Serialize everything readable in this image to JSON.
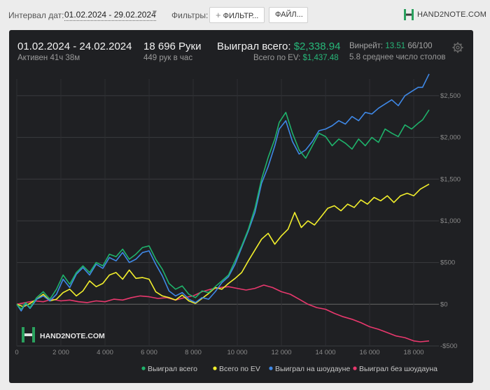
{
  "toolbar": {
    "interval_label": "Интервал дат:",
    "date_range": "01.02.2024 - 29.02.2024",
    "filters_label": "Фильтры:",
    "filter_button": "ФИЛЬТР...",
    "file_button": "ФАЙЛ...",
    "logo_text": "HAND2NOTE.COM"
  },
  "summary": {
    "period": "01.02.2024 - 24.02.2024",
    "active": "Активен 41ч 38м",
    "hands": "18 696 Руки",
    "hands_per_hour": "449 рук в час",
    "won_label": "Выиграл всего:",
    "won_value": "$2,338.94",
    "ev_label": "Всего по EV:",
    "ev_value": "$1,437.48",
    "winrate_label": "Винрейт:",
    "winrate_value": "13.51",
    "winrate_unit": "66/100",
    "avg_tables": "5.8 среднее число столов"
  },
  "watermark": "HAND2NOTE.COM",
  "colors": {
    "won_total": "#1fb26b",
    "ev": "#f2ef2c",
    "showdown": "#3f88e6",
    "non_showdown": "#e8386d",
    "panel_bg": "#1f2023"
  },
  "chart_data": {
    "type": "line",
    "xlabel": "",
    "ylabel": "",
    "xlim": [
      0,
      18696
    ],
    "ylim": [
      -500,
      2700
    ],
    "x_ticks": [
      0,
      2000,
      4000,
      6000,
      8000,
      10000,
      12000,
      14000,
      16000,
      18000
    ],
    "x_tick_labels": [
      "0",
      "2 000",
      "4 000",
      "6 000",
      "8 000",
      "10 000",
      "12 000",
      "14 000",
      "16 000",
      "18 000"
    ],
    "y_ticks": [
      -500,
      0,
      500,
      1000,
      1500,
      2000,
      2500
    ],
    "y_tick_labels": [
      "-$500",
      "$0",
      "$500",
      "$1,000",
      "$1,500",
      "$2,000",
      "$2,500"
    ],
    "grid": true,
    "legend_position": "bottom-right",
    "series": [
      {
        "name": "Выиграл всего",
        "color": "#1fb26b",
        "x": [
          0,
          200,
          400,
          600,
          900,
          1200,
          1500,
          1800,
          2100,
          2400,
          2700,
          3000,
          3300,
          3600,
          3900,
          4200,
          4500,
          4800,
          5100,
          5400,
          5700,
          6000,
          6300,
          6600,
          6900,
          7200,
          7500,
          7800,
          8100,
          8400,
          8700,
          9000,
          9300,
          9600,
          9900,
          10200,
          10500,
          10800,
          11100,
          11400,
          11700,
          11900,
          12200,
          12500,
          12800,
          13100,
          13400,
          13700,
          14000,
          14300,
          14600,
          14900,
          15200,
          15500,
          15800,
          16100,
          16400,
          16700,
          17000,
          17300,
          17600,
          17900,
          18200,
          18400,
          18696
        ],
        "values": [
          0,
          -60,
          20,
          -40,
          80,
          150,
          60,
          180,
          350,
          240,
          380,
          460,
          380,
          500,
          460,
          600,
          570,
          660,
          540,
          600,
          680,
          700,
          540,
          420,
          250,
          180,
          220,
          120,
          80,
          160,
          140,
          210,
          280,
          350,
          520,
          700,
          900,
          1150,
          1500,
          1760,
          1980,
          2180,
          2300,
          2050,
          1850,
          1750,
          1900,
          2050,
          2010,
          1900,
          1980,
          1930,
          1860,
          1980,
          1900,
          2000,
          1940,
          2100,
          2050,
          2010,
          2150,
          2100,
          2170,
          2210,
          2330
        ]
      },
      {
        "name": "Всего по EV",
        "color": "#f2ef2c",
        "x": [
          0,
          300,
          600,
          900,
          1200,
          1500,
          1800,
          2100,
          2400,
          2700,
          3000,
          3300,
          3600,
          3900,
          4200,
          4500,
          4800,
          5100,
          5400,
          5700,
          6000,
          6300,
          6600,
          6900,
          7200,
          7500,
          7800,
          8100,
          8400,
          8700,
          9000,
          9300,
          9600,
          9900,
          10200,
          10500,
          10800,
          11100,
          11400,
          11700,
          12000,
          12300,
          12600,
          12900,
          13200,
          13500,
          13800,
          14100,
          14400,
          14700,
          15000,
          15300,
          15600,
          15900,
          16200,
          16500,
          16800,
          17100,
          17400,
          17700,
          18000,
          18300,
          18696
        ],
        "values": [
          0,
          -30,
          10,
          60,
          120,
          40,
          60,
          140,
          180,
          100,
          160,
          280,
          210,
          250,
          350,
          380,
          300,
          410,
          310,
          320,
          300,
          150,
          100,
          80,
          50,
          110,
          40,
          10,
          70,
          130,
          200,
          180,
          250,
          310,
          380,
          520,
          650,
          780,
          850,
          720,
          820,
          900,
          1100,
          920,
          1000,
          950,
          1050,
          1150,
          1180,
          1120,
          1200,
          1160,
          1250,
          1200,
          1280,
          1240,
          1300,
          1220,
          1300,
          1330,
          1300,
          1380,
          1440
        ]
      },
      {
        "name": "Выиграл на шоудауне",
        "color": "#3f88e6",
        "x": [
          0,
          200,
          400,
          600,
          900,
          1200,
          1500,
          1800,
          2100,
          2400,
          2700,
          3000,
          3300,
          3600,
          3900,
          4200,
          4500,
          4800,
          5100,
          5400,
          5700,
          6000,
          6300,
          6600,
          6900,
          7200,
          7500,
          7800,
          8100,
          8400,
          8700,
          9000,
          9300,
          9600,
          9900,
          10200,
          10500,
          10800,
          11100,
          11400,
          11700,
          11900,
          12200,
          12500,
          12800,
          13100,
          13400,
          13700,
          14000,
          14300,
          14600,
          14900,
          15200,
          15500,
          15800,
          16100,
          16400,
          16700,
          17000,
          17300,
          17600,
          17900,
          18200,
          18400,
          18696
        ],
        "values": [
          0,
          -80,
          10,
          -50,
          60,
          100,
          40,
          120,
          300,
          200,
          360,
          440,
          350,
          480,
          430,
          560,
          520,
          620,
          500,
          540,
          620,
          640,
          480,
          340,
          160,
          100,
          140,
          60,
          20,
          80,
          60,
          150,
          260,
          330,
          480,
          680,
          880,
          1100,
          1450,
          1650,
          1900,
          2100,
          2200,
          1950,
          1800,
          1850,
          1950,
          2080,
          2100,
          2140,
          2200,
          2160,
          2250,
          2200,
          2300,
          2280,
          2350,
          2400,
          2450,
          2380,
          2500,
          2550,
          2600,
          2600,
          2760
        ]
      },
      {
        "name": "Выиграл без шоудауна",
        "color": "#e8386d",
        "x": [
          0,
          400,
          800,
          1200,
          1600,
          2000,
          2400,
          2800,
          3200,
          3600,
          4000,
          4400,
          4800,
          5200,
          5600,
          6000,
          6400,
          6800,
          7200,
          7600,
          8000,
          8400,
          8800,
          9200,
          9600,
          10000,
          10400,
          10800,
          11200,
          11600,
          12000,
          12400,
          12800,
          13200,
          13600,
          14000,
          14400,
          14800,
          15200,
          15600,
          16000,
          16400,
          16800,
          17200,
          17600,
          18000,
          18300,
          18696
        ],
        "values": [
          0,
          20,
          40,
          30,
          60,
          40,
          50,
          30,
          20,
          40,
          30,
          60,
          50,
          80,
          100,
          90,
          70,
          80,
          50,
          80,
          100,
          150,
          180,
          200,
          210,
          190,
          170,
          190,
          230,
          200,
          150,
          120,
          60,
          0,
          -40,
          -60,
          -110,
          -150,
          -180,
          -220,
          -270,
          -300,
          -340,
          -380,
          -400,
          -440,
          -450,
          -440
        ]
      }
    ]
  }
}
